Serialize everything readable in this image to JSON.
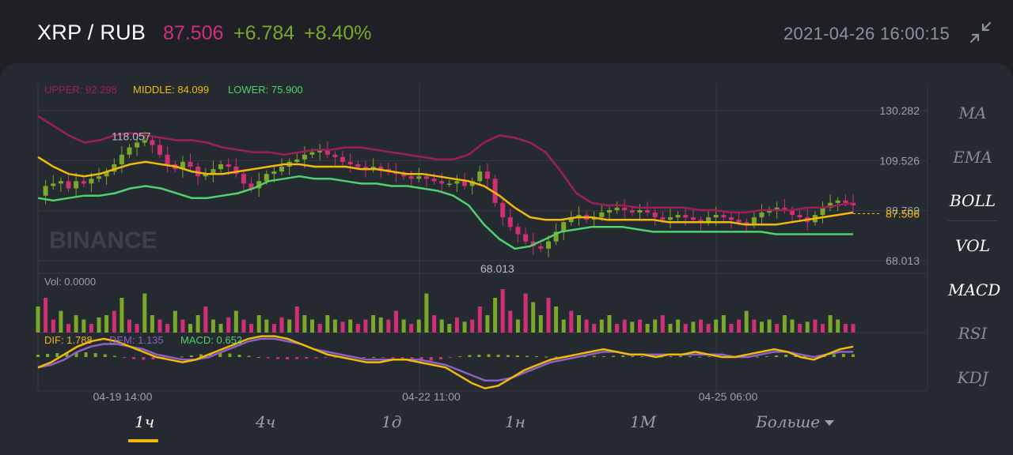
{
  "header": {
    "pair": "XRP / RUB",
    "price": "87.506",
    "change": "+6.784",
    "change_pct": "+8.40%",
    "timestamp": "2021-04-26 16:00:15",
    "collapse_icon": "shrink-arrows-icon"
  },
  "colors": {
    "up": "#7aa82a",
    "down": "#d12f75",
    "boll_upper": "#9e1e5b",
    "boll_middle": "#f0b90b",
    "boll_lower": "#4fd16b",
    "dif": "#f0b90b",
    "dem": "#8c62c4",
    "background": "#252930",
    "grid": "#353a43"
  },
  "watermark": "BINANCE",
  "indicators": {
    "boll": {
      "upper": "UPPER: 92.298",
      "middle": "MIDDLE: 84.099",
      "lower": "LOWER: 75.900"
    },
    "vol": "Vol: 0.0000",
    "macd": {
      "dif": "DIF: 1.788",
      "dem": "DEM: 1.135",
      "macd": "MACD: 0.652"
    }
  },
  "side_menu": [
    "MA",
    "EMA",
    "BOLL",
    "VOL",
    "MACD",
    "RSI",
    "KDJ"
  ],
  "side_menu_active": [
    "BOLL",
    "VOL",
    "MACD"
  ],
  "timeframes": [
    "1ч",
    "4ч",
    "1д",
    "1н",
    "1М",
    "Больше"
  ],
  "timeframe_active": "1ч",
  "chart_data": {
    "type": "candlestick",
    "y_ticks": [
      "130.282",
      "109.526",
      "88.769",
      "68.013"
    ],
    "ylim": [
      68.013,
      130.282
    ],
    "x_ticks": [
      "04-19 14:00",
      "04-22 11:00",
      "04-25 06:00"
    ],
    "max_label": "118.057",
    "min_label": "68.013",
    "last_price": "87.506",
    "price_series": [
      95,
      99,
      100,
      101,
      98,
      101,
      100,
      102,
      103,
      105,
      108,
      112,
      115,
      117,
      118,
      116,
      112,
      108,
      106,
      109,
      107,
      103,
      104,
      106,
      108,
      107,
      104,
      100,
      98,
      101,
      104,
      105,
      107,
      109,
      110,
      112,
      113,
      114,
      112,
      111,
      109,
      108,
      107,
      106,
      107,
      106,
      105,
      104,
      103,
      102,
      103,
      102,
      101,
      100,
      100,
      101,
      99,
      101,
      105,
      102,
      92,
      86,
      82,
      79,
      76,
      74,
      73,
      76,
      80,
      84,
      86,
      87,
      85,
      86,
      88,
      89,
      90,
      89,
      88,
      89,
      88,
      86,
      85,
      86,
      87,
      86,
      85,
      84,
      86,
      87,
      86,
      85,
      84,
      83,
      86,
      88,
      89,
      90,
      89,
      87,
      86,
      84,
      87,
      90,
      92,
      93,
      92,
      91
    ],
    "boll_upper": [
      128,
      124,
      120,
      117,
      118,
      120,
      121,
      120,
      119,
      118,
      118,
      117,
      115,
      114,
      113,
      113,
      112,
      113,
      114,
      114,
      115,
      115,
      114,
      113,
      112,
      111,
      110,
      110,
      112,
      117,
      120,
      119,
      117,
      113,
      105,
      96,
      92,
      91,
      91,
      90,
      90,
      90,
      90,
      89,
      89,
      88,
      88,
      89,
      89,
      89,
      90,
      90,
      91,
      92
    ],
    "boll_middle": [
      111,
      107,
      104,
      103,
      104,
      106,
      108,
      109,
      108,
      107,
      105,
      104,
      104,
      105,
      106,
      107,
      108,
      108,
      107,
      107,
      107,
      106,
      106,
      105,
      104,
      104,
      103,
      102,
      101,
      99,
      95,
      90,
      86,
      85,
      85,
      86,
      86,
      85,
      85,
      85,
      85,
      84,
      84,
      84,
      84,
      84,
      83,
      83,
      83,
      84,
      85,
      86,
      87,
      88
    ],
    "boll_lower": [
      94,
      93,
      94,
      95,
      95,
      96,
      98,
      99,
      98,
      96,
      94,
      94,
      95,
      96,
      98,
      101,
      102,
      103,
      102,
      102,
      101,
      100,
      100,
      99,
      99,
      98,
      97,
      95,
      91,
      83,
      77,
      73,
      74,
      77,
      80,
      81,
      82,
      82,
      82,
      81,
      80,
      80,
      80,
      80,
      80,
      80,
      80,
      80,
      79,
      79,
      79,
      79,
      79,
      79
    ],
    "volume": [
      0.6,
      0.8,
      0.3,
      0.5,
      0.2,
      0.4,
      0.3,
      0.2,
      0.35,
      0.4,
      0.5,
      0.8,
      0.3,
      0.2,
      0.9,
      0.4,
      0.3,
      0.2,
      0.5,
      0.3,
      0.2,
      0.4,
      0.6,
      0.3,
      0.2,
      0.35,
      0.5,
      0.3,
      0.2,
      0.4,
      0.3,
      0.2,
      0.35,
      0.3,
      0.6,
      0.4,
      0.3,
      0.2,
      0.4,
      0.3,
      0.25,
      0.3,
      0.2,
      0.3,
      0.4,
      0.35,
      0.3,
      0.5,
      0.3,
      0.2,
      0.3,
      0.9,
      0.4,
      0.3,
      0.2,
      0.35,
      0.25,
      0.3,
      0.6,
      0.4,
      0.8,
      1.0,
      0.5,
      0.3,
      0.9,
      0.7,
      0.4,
      0.8,
      0.6,
      0.3,
      0.5,
      0.4,
      0.3,
      0.2,
      0.3,
      0.4,
      0.2,
      0.3,
      0.25,
      0.3,
      0.2,
      0.3,
      0.4,
      0.2,
      0.3,
      0.2,
      0.25,
      0.3,
      0.2,
      0.3,
      0.4,
      0.2,
      0.3,
      0.5,
      0.3,
      0.25,
      0.3,
      0.2,
      0.4,
      0.3,
      0.2,
      0.25,
      0.3,
      0.2,
      0.4,
      0.3,
      0.2,
      0.2
    ],
    "macd_hist": [
      0.6,
      0.8,
      1.0,
      1.2,
      1.3,
      1.2,
      1.0,
      0.7,
      0.3,
      -0.2,
      -0.5,
      -0.7,
      -0.6,
      -0.4,
      -0.2,
      0.1,
      0.4,
      0.7,
      0.9,
      1.0,
      0.9,
      0.6,
      0.3,
      0.0,
      -0.3,
      -0.5,
      -0.6,
      -0.5,
      -0.4,
      -0.3,
      -0.2,
      -0.2,
      -0.3,
      -0.2,
      -0.1,
      0.0,
      -0.1,
      -0.3,
      -0.6,
      -0.9,
      -1.1,
      -0.9,
      -0.6,
      -0.2,
      0.2,
      0.5,
      0.6,
      0.7,
      0.6,
      0.5,
      0.4,
      0.3,
      0.2,
      0.1,
      0.1,
      0.0,
      0.1,
      0.2,
      0.3,
      0.2,
      0.3,
      0.4,
      0.3,
      0.2,
      0.2,
      0.1,
      0.2,
      0.3,
      0.2,
      0.1,
      0.2,
      0.3,
      0.4,
      0.3,
      0.2,
      0.1,
      0.2,
      0.4,
      0.6,
      0.5,
      0.4,
      0.3,
      0.5,
      0.7,
      0.8,
      0.7
    ],
    "dif": [
      -4,
      -2,
      1,
      4,
      6,
      7,
      6,
      4,
      2,
      0,
      -1,
      -2,
      -1,
      1,
      3,
      5,
      7,
      8,
      8,
      7,
      5,
      3,
      1,
      0,
      -1,
      -2,
      -2,
      -1,
      -1,
      -2,
      -3,
      -4,
      -7,
      -10,
      -12,
      -11,
      -8,
      -5,
      -3,
      -1,
      0,
      1,
      2,
      3,
      2,
      1,
      1,
      0,
      1,
      1,
      2,
      1,
      0,
      0,
      1,
      2,
      3,
      2,
      0,
      -1,
      1,
      3,
      4
    ],
    "dem": [
      -4,
      -3,
      -1,
      2,
      4,
      5,
      5,
      4,
      3,
      1,
      0,
      -1,
      -1,
      0,
      2,
      4,
      6,
      7,
      7,
      6,
      5,
      3,
      2,
      1,
      0,
      -1,
      -1,
      -1,
      -1,
      -1,
      -2,
      -3,
      -5,
      -7,
      -9,
      -9,
      -8,
      -6,
      -4,
      -2,
      -1,
      0,
      1,
      2,
      2,
      1,
      1,
      1,
      1,
      1,
      1,
      1,
      1,
      0,
      0,
      1,
      2,
      2,
      1,
      0,
      1,
      2,
      2
    ]
  }
}
